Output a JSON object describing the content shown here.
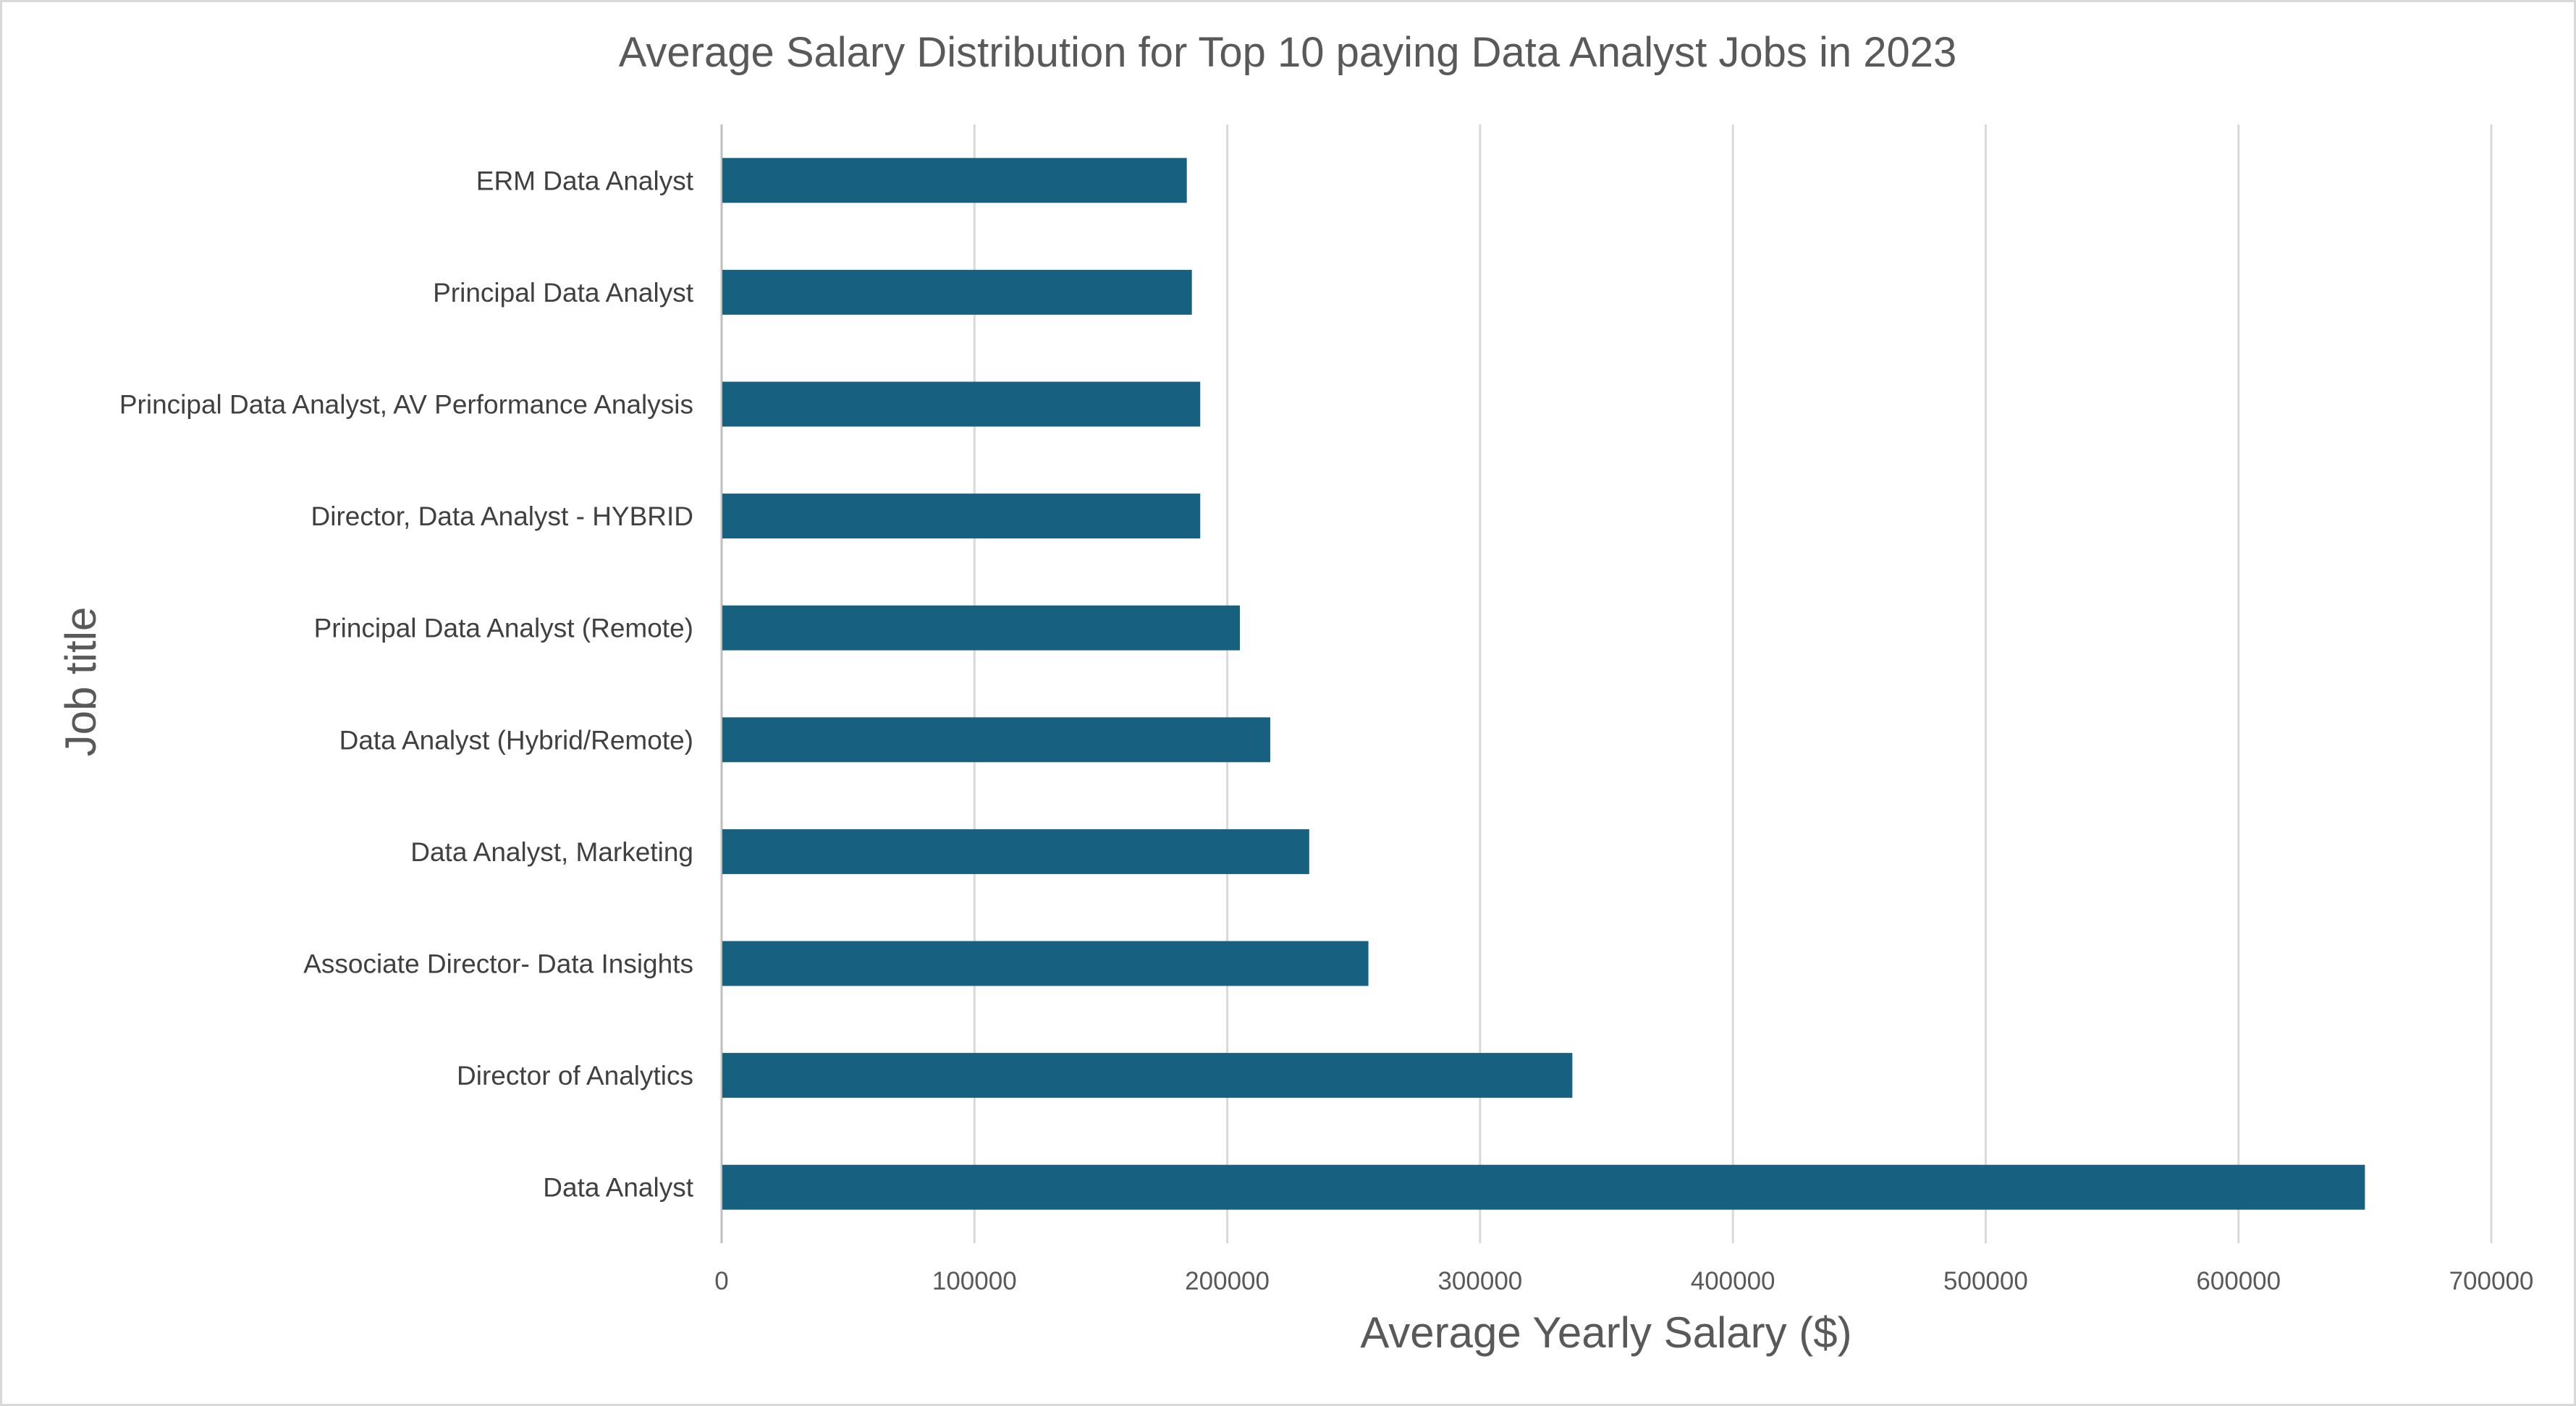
{
  "chart_data": {
    "type": "bar",
    "orientation": "horizontal",
    "title": "Average Salary Distribution for Top 10 paying Data Analyst Jobs in 2023",
    "xlabel": "Average Yearly Salary ($)",
    "ylabel": "Job title",
    "xlim": [
      0,
      700000
    ],
    "x_ticks": [
      "0",
      "100000",
      "200000",
      "300000",
      "400000",
      "500000",
      "600000",
      "700000"
    ],
    "grid": "vertical",
    "legend": "none",
    "bar_color": "#17607f",
    "categories": [
      "ERM Data Analyst",
      "Principal Data Analyst",
      "Principal Data Analyst, AV Performance Analysis",
      "Director, Data Analyst - HYBRID",
      "Principal Data Analyst (Remote)",
      "Data Analyst (Hybrid/Remote)",
      "Data Analyst, Marketing",
      "Associate Director- Data Insights",
      "Director of Analytics",
      "Data Analyst"
    ],
    "values": [
      184000,
      186000,
      189309,
      189309,
      205000,
      217000,
      232423,
      255830,
      336500,
      650000
    ]
  }
}
